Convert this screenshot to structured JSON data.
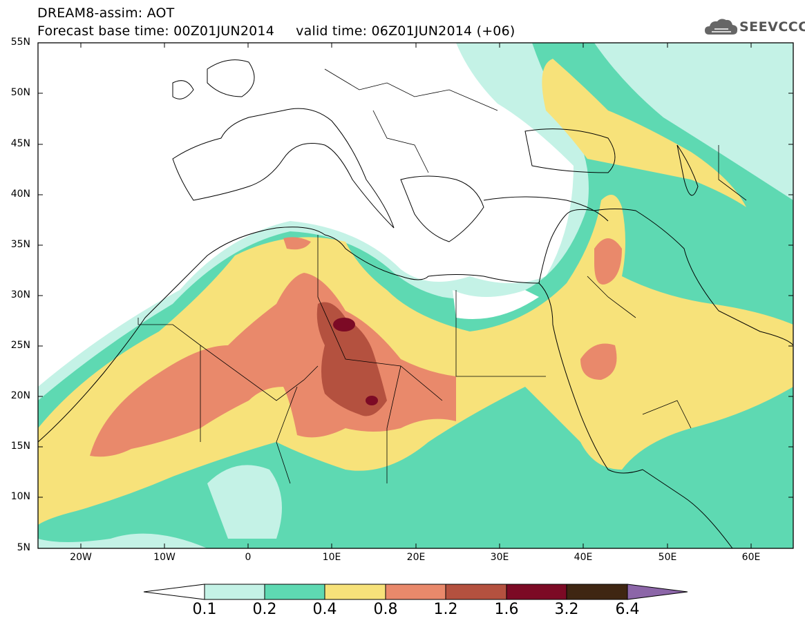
{
  "header": {
    "title_line1": "DREAM8-assim: AOT",
    "title_line2": "Forecast base time: 00Z01JUN2014     valid time: 06Z01JUN2014 (+06)",
    "logo_text": "SEEVCCC"
  },
  "map": {
    "lat_labels": [
      "55N",
      "50N",
      "45N",
      "40N",
      "35N",
      "30N",
      "25N",
      "20N",
      "15N",
      "10N",
      "5N"
    ],
    "lon_labels": [
      "20W",
      "10W",
      "0",
      "10E",
      "20E",
      "30E",
      "40E",
      "50E",
      "60E"
    ]
  },
  "colorbar": {
    "labels": [
      "0.1",
      "0.2",
      "0.4",
      "0.8",
      "1.2",
      "1.6",
      "3.2",
      "6.4"
    ],
    "colors": [
      "#c4f2e6",
      "#5ed9b2",
      "#f7e27a",
      "#e9896b",
      "#b4513f",
      "#7c0a25",
      "#3f2612",
      "#8c66a8"
    ]
  },
  "colors": {
    "aot_0_1": "#c4f2e6",
    "aot_0_2": "#5ed9b2",
    "aot_0_4": "#f7e27a",
    "aot_0_8": "#e9896b",
    "aot_1_2": "#b4513f",
    "aot_1_6": "#7c0a25"
  }
}
